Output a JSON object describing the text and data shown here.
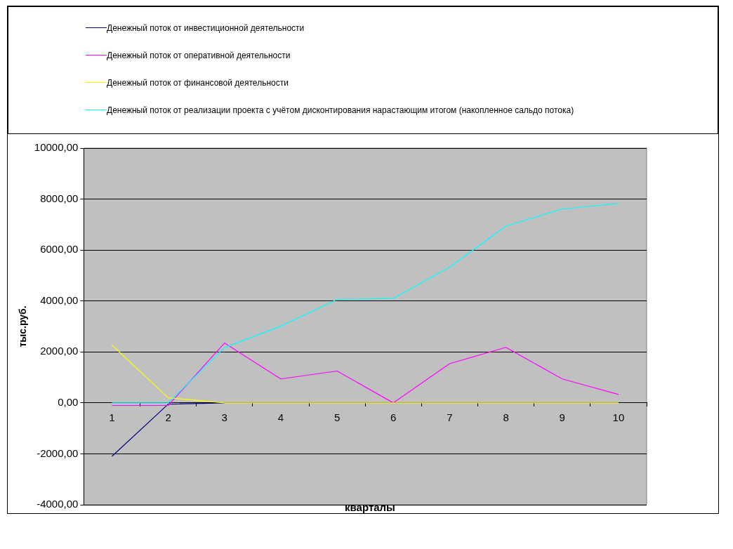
{
  "chart_data": {
    "type": "line",
    "xlabel": "кварталы",
    "ylabel": "тыс.руб.",
    "categories": [
      "1",
      "2",
      "3",
      "4",
      "5",
      "6",
      "7",
      "8",
      "9",
      "10"
    ],
    "series": [
      {
        "name": "Денежный поток от инвестиционной деятельности",
        "color": "#000080",
        "values": [
          -2100,
          -50,
          0,
          null,
          null,
          null,
          null,
          null,
          null,
          null
        ]
      },
      {
        "name": "Денежный поток от оперативной деятельности",
        "color": "#ff00ff",
        "values": [
          -100,
          -100,
          2350,
          940,
          1250,
          0,
          1540,
          2180,
          940,
          330
        ]
      },
      {
        "name": "Денежный поток от финансовой деятельности",
        "color": "#ffff00",
        "values": [
          2270,
          200,
          0,
          0,
          0,
          0,
          0,
          0,
          0,
          0
        ]
      },
      {
        "name": "Денежный поток от реализации проекта с учётом дисконтирования нарастающим итогом (накопленное сальдо потока)",
        "color": "#00ffff",
        "values": [
          0,
          0,
          2170,
          3010,
          4060,
          4100,
          5330,
          6940,
          7610,
          7830
        ]
      }
    ],
    "ylim": [
      -4000,
      10000
    ],
    "yticks": [
      {
        "value": -4000,
        "label": "-4000,00"
      },
      {
        "value": -2000,
        "label": "-2000,00"
      },
      {
        "value": 0,
        "label": "0,00"
      },
      {
        "value": 2000,
        "label": "2000,00"
      },
      {
        "value": 4000,
        "label": "4000,00"
      },
      {
        "value": 6000,
        "label": "6000,00"
      },
      {
        "value": 8000,
        "label": "8000,00"
      },
      {
        "value": 10000,
        "label": "10000,00"
      }
    ],
    "grid": "y",
    "legend": "top",
    "marker": "none",
    "line_style": "solid"
  }
}
